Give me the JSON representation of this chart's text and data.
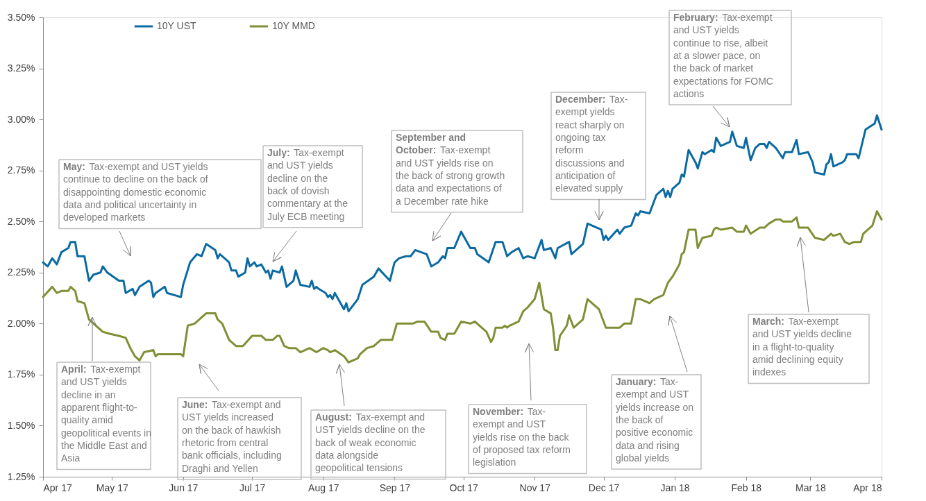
{
  "chart_data": {
    "type": "line",
    "xlim": [
      "2017-04-01",
      "2018-04-01"
    ],
    "xticks": [
      {
        "value": "2017-04-01",
        "label": "Apr 17"
      },
      {
        "value": "2017-05-01",
        "label": "May 17"
      },
      {
        "value": "2017-06-01",
        "label": "Jun 17"
      },
      {
        "value": "2017-07-01",
        "label": "Jul 17"
      },
      {
        "value": "2017-08-01",
        "label": "Aug 17"
      },
      {
        "value": "2017-09-01",
        "label": "Sep 17"
      },
      {
        "value": "2017-10-01",
        "label": "Oct 17"
      },
      {
        "value": "2017-11-01",
        "label": "Nov 17"
      },
      {
        "value": "2017-12-01",
        "label": "Dec 17"
      },
      {
        "value": "2018-01-01",
        "label": "Jan 18"
      },
      {
        "value": "2018-02-01",
        "label": "Feb 18"
      },
      {
        "value": "2018-03-01",
        "label": "Mar 18"
      },
      {
        "value": "2018-04-01",
        "label": "Apr 18"
      }
    ],
    "ylim": [
      1.25,
      3.5
    ],
    "yticks": [
      {
        "value": 1.25,
        "label": "1.25%"
      },
      {
        "value": 1.5,
        "label": "1.50%"
      },
      {
        "value": 1.75,
        "label": "1.75%"
      },
      {
        "value": 2.0,
        "label": "2.00%"
      },
      {
        "value": 2.25,
        "label": "2.25%"
      },
      {
        "value": 2.5,
        "label": "2.50%"
      },
      {
        "value": 2.75,
        "label": "2.75%"
      },
      {
        "value": 3.0,
        "label": "3.00%"
      },
      {
        "value": 3.25,
        "label": "3.25%"
      },
      {
        "value": 3.5,
        "label": "3.50%"
      }
    ],
    "grid": false,
    "legend": "top left",
    "series": [
      {
        "name": "10Y UST",
        "color": "#0a6aa1",
        "x": [
          "2017-04-01",
          "2017-04-03",
          "2017-04-05",
          "2017-04-07",
          "2017-04-09",
          "2017-04-12",
          "2017-04-13",
          "2017-04-15",
          "2017-04-16",
          "2017-04-19",
          "2017-04-21",
          "2017-04-23",
          "2017-04-26",
          "2017-04-27",
          "2017-04-29",
          "2017-05-04",
          "2017-05-06",
          "2017-05-07",
          "2017-05-10",
          "2017-05-11",
          "2017-05-13",
          "2017-05-17",
          "2017-05-18",
          "2017-05-19",
          "2017-05-20",
          "2017-05-24",
          "2017-05-25",
          "2017-05-28",
          "2017-05-31",
          "2017-06-01",
          "2017-06-04",
          "2017-06-07",
          "2017-06-09",
          "2017-06-11",
          "2017-06-15",
          "2017-06-16",
          "2017-06-17",
          "2017-06-19",
          "2017-06-21",
          "2017-06-22",
          "2017-06-24",
          "2017-06-25",
          "2017-06-28",
          "2017-06-29",
          "2017-06-30",
          "2017-07-02",
          "2017-07-03",
          "2017-07-05",
          "2017-07-07",
          "2017-07-08",
          "2017-07-09",
          "2017-07-10",
          "2017-07-13",
          "2017-07-14",
          "2017-07-16",
          "2017-07-19",
          "2017-07-20",
          "2017-07-22",
          "2017-07-26",
          "2017-07-27",
          "2017-07-28",
          "2017-07-29",
          "2017-07-30",
          "2017-08-02",
          "2017-08-03",
          "2017-08-04",
          "2017-08-05",
          "2017-08-06",
          "2017-08-10",
          "2017-08-11",
          "2017-08-12",
          "2017-08-16",
          "2017-08-18",
          "2017-08-23",
          "2017-08-25",
          "2017-08-30",
          "2017-09-01",
          "2017-09-03",
          "2017-09-06",
          "2017-09-08",
          "2017-09-10",
          "2017-09-15",
          "2017-09-17",
          "2017-09-20",
          "2017-09-22",
          "2017-09-23",
          "2017-09-24",
          "2017-09-27",
          "2017-09-30",
          "2017-10-04",
          "2017-10-06",
          "2017-10-07",
          "2017-10-12",
          "2017-10-15",
          "2017-10-18",
          "2017-10-20",
          "2017-10-22",
          "2017-10-25",
          "2017-10-27",
          "2017-10-29",
          "2017-11-01",
          "2017-11-04",
          "2017-11-05",
          "2017-11-08",
          "2017-11-10",
          "2017-11-11",
          "2017-11-16",
          "2017-11-17",
          "2017-11-22",
          "2017-11-24",
          "2017-11-26",
          "2017-11-30",
          "2017-12-01",
          "2017-12-02",
          "2017-12-03",
          "2017-12-07",
          "2017-12-08",
          "2017-12-10",
          "2017-12-13",
          "2017-12-15",
          "2017-12-16",
          "2017-12-17",
          "2017-12-21",
          "2017-12-24",
          "2017-12-27",
          "2017-12-28",
          "2017-12-29",
          "2017-12-30",
          "2017-12-31",
          "2018-01-03",
          "2018-01-04",
          "2018-01-05",
          "2018-01-07",
          "2018-01-10",
          "2018-01-11",
          "2018-01-13",
          "2018-01-14",
          "2018-01-17",
          "2018-01-18",
          "2018-01-19",
          "2018-01-21",
          "2018-01-25",
          "2018-01-26",
          "2018-01-28",
          "2018-01-31",
          "2018-02-01",
          "2018-02-03",
          "2018-02-05",
          "2018-02-07",
          "2018-02-09",
          "2018-02-10",
          "2018-02-11",
          "2018-02-14",
          "2018-02-17",
          "2018-02-18",
          "2018-02-21",
          "2018-02-23",
          "2018-02-24",
          "2018-02-28",
          "2018-03-02",
          "2018-03-03",
          "2018-03-07",
          "2018-03-08",
          "2018-03-09",
          "2018-03-10",
          "2018-03-11",
          "2018-03-15",
          "2018-03-16",
          "2018-03-17",
          "2018-03-21",
          "2018-03-22",
          "2018-03-25",
          "2018-03-29",
          "2018-03-30",
          "2018-04-01"
        ],
        "values": [
          2.3,
          2.28,
          2.32,
          2.29,
          2.35,
          2.37,
          2.4,
          2.4,
          2.33,
          2.33,
          2.21,
          2.24,
          2.25,
          2.28,
          2.25,
          2.21,
          2.21,
          2.15,
          2.17,
          2.14,
          2.18,
          2.21,
          2.2,
          2.13,
          2.15,
          2.18,
          2.15,
          2.14,
          2.13,
          2.19,
          2.3,
          2.34,
          2.33,
          2.39,
          2.36,
          2.32,
          2.34,
          2.32,
          2.3,
          2.26,
          2.26,
          2.23,
          2.25,
          2.32,
          2.28,
          2.3,
          2.28,
          2.29,
          2.25,
          2.26,
          2.22,
          2.26,
          2.25,
          2.28,
          2.18,
          2.21,
          2.26,
          2.19,
          2.18,
          2.21,
          2.17,
          2.18,
          2.17,
          2.15,
          2.13,
          2.14,
          2.12,
          2.15,
          2.07,
          2.1,
          2.06,
          2.12,
          2.19,
          2.23,
          2.27,
          2.21,
          2.3,
          2.32,
          2.33,
          2.33,
          2.36,
          2.34,
          2.28,
          2.3,
          2.33,
          2.32,
          2.37,
          2.37,
          2.45,
          2.37,
          2.37,
          2.34,
          2.3,
          2.4,
          2.4,
          2.33,
          2.35,
          2.37,
          2.32,
          2.33,
          2.32,
          2.41,
          2.36,
          2.37,
          2.32,
          2.37,
          2.4,
          2.34,
          2.39,
          2.49,
          2.48,
          2.46,
          2.41,
          2.43,
          2.41,
          2.46,
          2.44,
          2.47,
          2.48,
          2.54,
          2.53,
          2.55,
          2.54,
          2.63,
          2.66,
          2.62,
          2.65,
          2.62,
          2.66,
          2.69,
          2.73,
          2.72,
          2.85,
          2.79,
          2.76,
          2.84,
          2.83,
          2.85,
          2.84,
          2.91,
          2.87,
          2.89,
          2.94,
          2.87,
          2.86,
          2.91,
          2.8,
          2.86,
          2.88,
          2.88,
          2.86,
          2.89,
          2.86,
          2.81,
          2.84,
          2.84,
          2.9,
          2.83,
          2.84,
          2.79,
          2.74,
          2.73,
          2.78,
          2.79,
          2.83,
          2.77,
          2.79,
          2.8,
          2.83,
          2.83,
          2.81,
          2.95,
          2.98,
          3.02,
          2.95
        ]
      },
      {
        "name": "10Y MMD",
        "color": "#7f8f35",
        "x": [
          "2017-04-01",
          "2017-04-05",
          "2017-04-07",
          "2017-04-09",
          "2017-04-12",
          "2017-04-13",
          "2017-04-15",
          "2017-04-16",
          "2017-04-19",
          "2017-04-21",
          "2017-04-24",
          "2017-04-27",
          "2017-04-30",
          "2017-05-04",
          "2017-05-07",
          "2017-05-09",
          "2017-05-11",
          "2017-05-13",
          "2017-05-15",
          "2017-05-19",
          "2017-05-20",
          "2017-05-21",
          "2017-05-31",
          "2017-06-01",
          "2017-06-03",
          "2017-06-06",
          "2017-06-08",
          "2017-06-11",
          "2017-06-15",
          "2017-06-16",
          "2017-06-18",
          "2017-06-21",
          "2017-06-24",
          "2017-06-27",
          "2017-07-01",
          "2017-07-05",
          "2017-07-07",
          "2017-07-10",
          "2017-07-12",
          "2017-07-13",
          "2017-07-15",
          "2017-07-17",
          "2017-07-20",
          "2017-07-22",
          "2017-07-24",
          "2017-07-26",
          "2017-07-29",
          "2017-08-01",
          "2017-08-03",
          "2017-08-04",
          "2017-08-06",
          "2017-08-10",
          "2017-08-12",
          "2017-08-16",
          "2017-08-17",
          "2017-08-20",
          "2017-08-23",
          "2017-08-26",
          "2017-08-27",
          "2017-08-31",
          "2017-09-02",
          "2017-09-06",
          "2017-09-09",
          "2017-09-11",
          "2017-09-14",
          "2017-09-17",
          "2017-09-20",
          "2017-09-21",
          "2017-09-23",
          "2017-09-24",
          "2017-09-27",
          "2017-09-30",
          "2017-10-04",
          "2017-10-06",
          "2017-10-08",
          "2017-10-11",
          "2017-10-13",
          "2017-10-14",
          "2017-10-15",
          "2017-10-18",
          "2017-10-19",
          "2017-10-20",
          "2017-10-21",
          "2017-10-25",
          "2017-10-27",
          "2017-10-29",
          "2017-11-01",
          "2017-11-03",
          "2017-11-05",
          "2017-11-08",
          "2017-11-09",
          "2017-11-10",
          "2017-11-11",
          "2017-11-12",
          "2017-11-15",
          "2017-11-16",
          "2017-11-18",
          "2017-11-22",
          "2017-11-24",
          "2017-11-27",
          "2017-11-29",
          "2017-12-02",
          "2017-12-08",
          "2017-12-10",
          "2017-12-13",
          "2017-12-15",
          "2017-12-17",
          "2017-12-21",
          "2017-12-23",
          "2017-12-27",
          "2017-12-29",
          "2017-12-31",
          "2018-01-03",
          "2018-01-04",
          "2018-01-05",
          "2018-01-07",
          "2018-01-10",
          "2018-01-11",
          "2018-01-13",
          "2018-01-17",
          "2018-01-18",
          "2018-01-19",
          "2018-01-21",
          "2018-01-26",
          "2018-01-28",
          "2018-01-31",
          "2018-02-01",
          "2018-02-03",
          "2018-02-07",
          "2018-02-09",
          "2018-02-11",
          "2018-02-14",
          "2018-02-16",
          "2018-02-17",
          "2018-02-21",
          "2018-02-23",
          "2018-02-24",
          "2018-02-28",
          "2018-03-03",
          "2018-03-07",
          "2018-03-09",
          "2018-03-10",
          "2018-03-11",
          "2018-03-14",
          "2018-03-16",
          "2018-03-18",
          "2018-03-20",
          "2018-03-23",
          "2018-03-24",
          "2018-03-28",
          "2018-03-30",
          "2018-04-01"
        ],
        "values": [
          2.13,
          2.18,
          2.15,
          2.16,
          2.16,
          2.18,
          2.16,
          2.11,
          2.1,
          2.02,
          1.99,
          1.96,
          1.95,
          1.94,
          1.93,
          1.88,
          1.84,
          1.82,
          1.86,
          1.87,
          1.84,
          1.85,
          1.85,
          1.84,
          1.99,
          2.0,
          2.02,
          2.05,
          2.05,
          2.02,
          2.0,
          1.92,
          1.89,
          1.89,
          1.94,
          1.94,
          1.92,
          1.92,
          1.94,
          1.94,
          1.89,
          1.88,
          1.88,
          1.86,
          1.87,
          1.88,
          1.86,
          1.88,
          1.87,
          1.86,
          1.87,
          1.84,
          1.81,
          1.83,
          1.85,
          1.88,
          1.89,
          1.92,
          1.92,
          1.92,
          2.0,
          2.0,
          2.0,
          2.01,
          2.01,
          1.96,
          1.96,
          1.93,
          1.92,
          1.95,
          1.95,
          2.01,
          2.0,
          2.01,
          1.99,
          1.96,
          1.91,
          1.93,
          1.98,
          1.98,
          1.99,
          1.98,
          1.99,
          2.01,
          2.06,
          2.08,
          2.12,
          2.2,
          2.07,
          2.05,
          1.98,
          1.87,
          1.87,
          1.94,
          1.99,
          2.04,
          1.98,
          2.02,
          2.12,
          2.09,
          2.07,
          1.98,
          1.98,
          2.0,
          2.0,
          2.12,
          2.12,
          2.1,
          2.12,
          2.14,
          2.2,
          2.23,
          2.29,
          2.34,
          2.35,
          2.46,
          2.46,
          2.37,
          2.42,
          2.43,
          2.46,
          2.47,
          2.46,
          2.47,
          2.45,
          2.45,
          2.48,
          2.44,
          2.47,
          2.47,
          2.49,
          2.51,
          2.51,
          2.5,
          2.5,
          2.52,
          2.47,
          2.47,
          2.42,
          2.41,
          2.43,
          2.44,
          2.43,
          2.44,
          2.4,
          2.39,
          2.4,
          2.4,
          2.44,
          2.48,
          2.55,
          2.51
        ]
      }
    ],
    "annotations": [
      "May: Tax-exempt and UST yields\ncontinue to decline on the back of\ndisappointing domestic economic\ndata and political uncertainty in\ndeveloped markets",
      "July: Tax-exempt\nand UST yields\ndecline on the\nback of dovish\ncommentary at the\nJuly ECB meeting",
      "September and\nOctober: Tax-exempt\nand UST yields rise on\nthe back of strong growth\ndata and expectations of\na December rate hike",
      "December: Tax-\nexempt yields\nreact sharply on\nongoing tax\nreform\ndiscussions and\nanticipation of\nelevated supply",
      "February: Tax-exempt\nand UST yields\ncontinue to rise, albeit\nat a slower pace, on\nthe back of market\nexpectations for FOMC\nactions",
      "April: Tax-exempt\nand UST yields\ndecline in an\napparent flight-to-\nquality amid\ngeopolitical events in\nthe Middle East and\nAsia",
      "June: Tax-exempt and\nUST yields increased\non the back of hawkish\nrhetoric from central\nbank officials, including\nDraghi and Yellen",
      "August: Tax-exempt and\nUST yields decline on the\nback of weak economic\ndata alongside\ngeopolitical tensions",
      "November: Tax-\nexempt and UST\nyields rise on the back\nof proposed tax reform\nlegislation",
      "January: Tax-\nexempt and UST\nyields increase on\nthe back of\npositive economic\ndata and rising\nglobal yields",
      "March: Tax-exempt\nand UST yields decline\nin a flight-to-quality\namid declining equity\nindexes"
    ]
  }
}
